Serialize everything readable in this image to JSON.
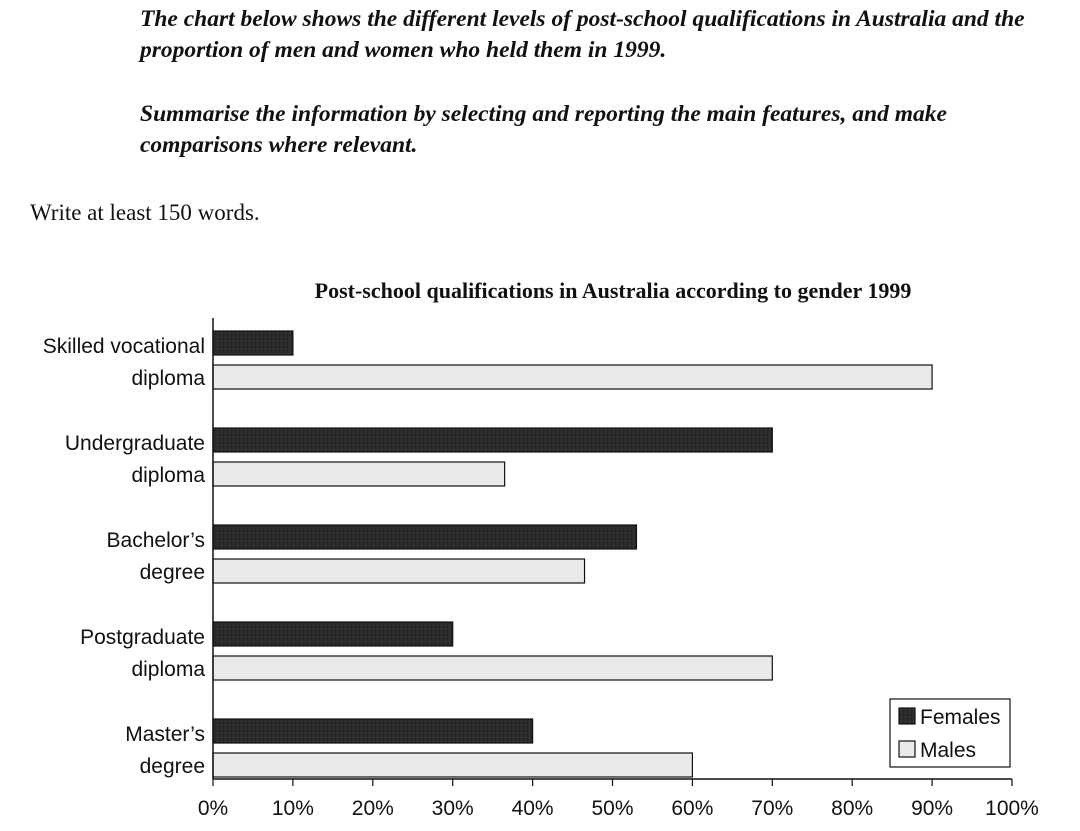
{
  "prompt": {
    "line1": "The chart below shows the different levels of post-school qualifications in Australia and the proportion of men and women who held them in 1999.",
    "line2": "Summarise the information by selecting and reporting the main features, and make comparisons where relevant.",
    "instruction": "Write at least 150 words."
  },
  "chart_data": {
    "type": "bar",
    "orientation": "horizontal",
    "title": "Post-school qualifications in Australia according to gender 1999",
    "categories": [
      [
        "Skilled vocational",
        "diploma"
      ],
      [
        "Undergraduate",
        "diploma"
      ],
      [
        "Bachelor’s",
        "degree"
      ],
      [
        "Postgraduate",
        "diploma"
      ],
      [
        "Master’s",
        "degree"
      ]
    ],
    "series": [
      {
        "name": "Females",
        "values": [
          10,
          70,
          53,
          30,
          40
        ],
        "color": "#2a2a2a"
      },
      {
        "name": "Males",
        "values": [
          90,
          36.5,
          46.5,
          70,
          60
        ],
        "color": "#ececec"
      }
    ],
    "xlim": [
      0,
      100
    ],
    "xticks": [
      "0%",
      "10%",
      "20%",
      "30%",
      "40%",
      "50%",
      "60%",
      "70%",
      "80%",
      "90%",
      "100%"
    ],
    "grid": false,
    "legend_position": "bottom-right"
  }
}
